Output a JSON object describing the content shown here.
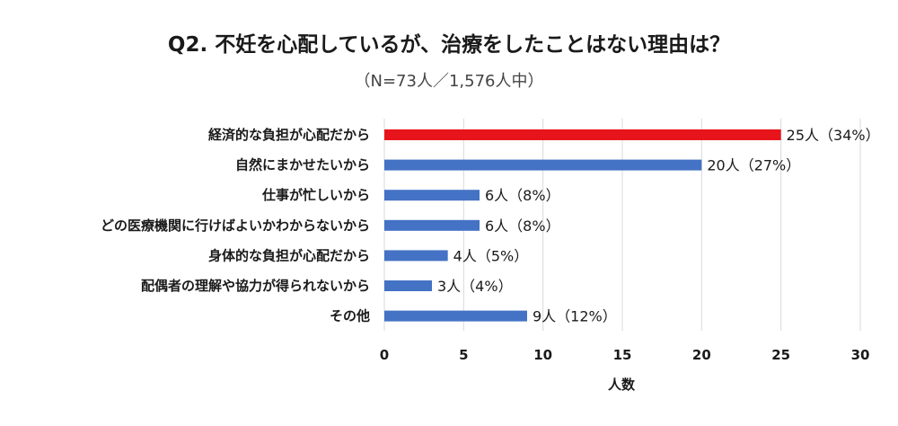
{
  "chart_data": {
    "type": "bar",
    "orientation": "horizontal",
    "title": "Q2. 不妊を心配しているが、治療をしたことはない理由は？",
    "subtitle": "（N=73人／1,576人中）",
    "xlabel": "人数",
    "ylabel": "",
    "xlim": [
      0,
      30
    ],
    "xticks": [
      0,
      5,
      10,
      15,
      20,
      25,
      30
    ],
    "grid": true,
    "categories": [
      "経済的な負担が心配だから",
      "自然にまかせたいから",
      "仕事が忙しいから",
      "どの医療機関に行けばよいかわからないから",
      "身体的な負担が心配だから",
      "配偶者の理解や協力が得られないから",
      "その他"
    ],
    "values": [
      25,
      20,
      6,
      6,
      4,
      3,
      9
    ],
    "data_labels": [
      "25人（34%）",
      "20人（27%）",
      "6人（8%）",
      "6人（8%）",
      "4人（5%）",
      "3人（4%）",
      "9人（12%）"
    ],
    "colors": {
      "highlight": "#e8141b",
      "default": "#4472c4"
    },
    "highlight_index": 0
  }
}
